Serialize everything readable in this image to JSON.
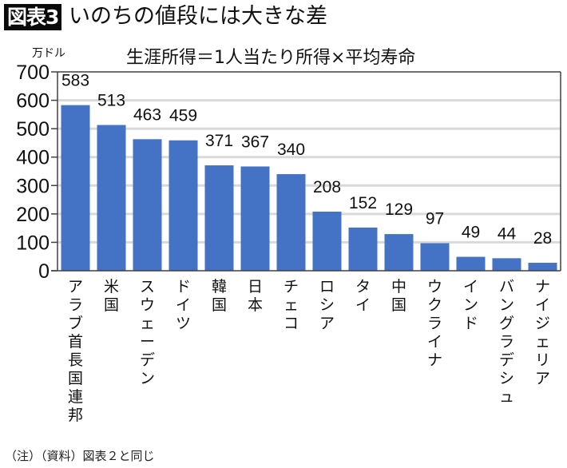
{
  "header": {
    "badge": "図表3",
    "title": "いのちの値段には大きな差"
  },
  "footnote": "（注）（資料）図表２と同じ",
  "colors": {
    "bar": "#4472C4",
    "grid": "#d9d9d9",
    "axis": "#404040"
  },
  "chart_data": {
    "type": "bar",
    "title": "生涯所得＝1人当たり所得×平均寿命",
    "ylabel": "万ドル",
    "xlabel": "",
    "ylim": [
      0,
      700
    ],
    "yticks": [
      0,
      100,
      200,
      300,
      400,
      500,
      600,
      700
    ],
    "grid": true,
    "categories": [
      "アラブ首長国連邦",
      "米国",
      "スウェーデン",
      "ドイツ",
      "韓国",
      "日本",
      "チェコ",
      "ロシア",
      "タイ",
      "中国",
      "ウクライナ",
      "インド",
      "バングラデシュ",
      "ナイジェリア"
    ],
    "values": [
      583,
      513,
      463,
      459,
      371,
      367,
      340,
      208,
      152,
      129,
      97,
      49,
      44,
      28
    ],
    "data_labels": [
      "583",
      "513",
      "463",
      "459",
      "371",
      "367",
      "340",
      "208",
      "152",
      "129",
      "97",
      "49",
      "44",
      "28"
    ]
  }
}
